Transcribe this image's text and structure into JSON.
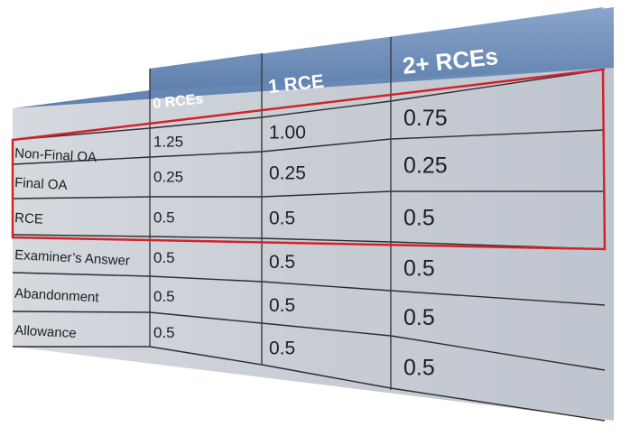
{
  "table": {
    "columns": [
      "",
      "0 RCEs",
      "1 RCE",
      "2+ RCEs"
    ],
    "rows": [
      {
        "label": "Non-Final OA",
        "values": [
          "1.25",
          "1.00",
          "0.75"
        ]
      },
      {
        "label": "Final OA",
        "values": [
          "0.25",
          "0.25",
          "0.25"
        ]
      },
      {
        "label": "RCE",
        "values": [
          "0.5",
          "0.5",
          "0.5"
        ]
      },
      {
        "label": "Examiner’s Answer",
        "values": [
          "0.5",
          "0.5",
          "0.5"
        ]
      },
      {
        "label": "Abandonment",
        "values": [
          "0.5",
          "0.5",
          "0.5"
        ]
      },
      {
        "label": "Allowance",
        "values": [
          "0.5",
          "0.5",
          "0.5"
        ]
      }
    ]
  },
  "colors": {
    "header_bg": "#6f8fbb",
    "body_bg": "#c9ced6",
    "grid_line": "#2d2d2d",
    "highlight": "#d2222a"
  }
}
